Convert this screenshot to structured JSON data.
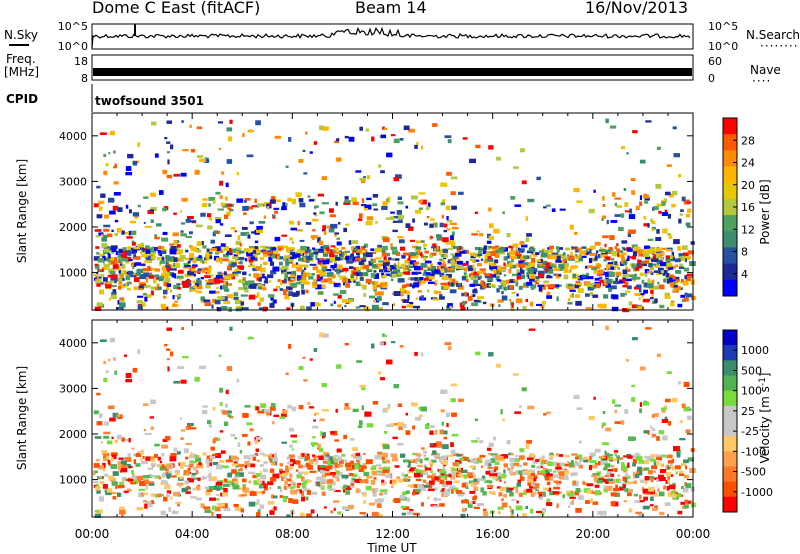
{
  "header": {
    "station": "Dome C East (fitACF)",
    "beam": "Beam 14",
    "date": "16/Nov/2013"
  },
  "panels": {
    "nsky_label": "N.Sky",
    "nsky_ticks": [
      "10^5",
      "10^0"
    ],
    "nsearch_label": "N.Search",
    "nsearch_ticks": [
      "10^5",
      "10^0"
    ],
    "freq_label": "Freq.",
    "freq_unit": "[MHz]",
    "freq_ticks": [
      "18",
      "8"
    ],
    "nave_label": "Nave",
    "nave_ticks": [
      "60",
      "0"
    ],
    "cpid_label": "CPID",
    "cpid_value": "twofsound 3501"
  },
  "colorbars": {
    "power": {
      "label": "Power [dB]",
      "ticks": [
        "28",
        "24",
        "20",
        "16",
        "12",
        "8",
        "4"
      ],
      "colors": [
        "#ff0000",
        "#ff5a00",
        "#ff8c00",
        "#ffb400",
        "#e6c800",
        "#b4c83c",
        "#50a060",
        "#3c8c6e",
        "#2850a0",
        "#1e2896",
        "#0000ff"
      ]
    },
    "velocity": {
      "label": "Velocity [m s^-1]",
      "ticks": [
        "1000",
        "500",
        "100",
        "25",
        "-25",
        "-100",
        "-500",
        "-1000"
      ],
      "colors": [
        "#0000c8",
        "#1e3cb4",
        "#3c8c6e",
        "#50b450",
        "#78dc3c",
        "#c8c8c8",
        "#c8c8c8",
        "#ffc864",
        "#ffa050",
        "#ff7828",
        "#ff5000",
        "#ff0000"
      ]
    }
  },
  "chart_data": [
    {
      "type": "heatmap",
      "name": "power",
      "xlabel": "",
      "ylabel": "Slant Range [km]",
      "x_range": [
        "00:00",
        "24:00"
      ],
      "ylim": [
        180,
        4500
      ],
      "yticks": [
        1000,
        2000,
        3000,
        4000
      ],
      "colorbar": "Power [dB]",
      "colorbar_ticks": [
        28,
        24,
        20,
        16,
        12,
        8,
        4
      ]
    },
    {
      "type": "heatmap",
      "name": "velocity",
      "xlabel": "Time UT",
      "ylabel": "Slant Range [km]",
      "x_ticks": [
        "00:00",
        "04:00",
        "08:00",
        "12:00",
        "16:00",
        "20:00",
        "00:00"
      ],
      "ylim": [
        180,
        4500
      ],
      "yticks": [
        1000,
        2000,
        3000,
        4000
      ],
      "colorbar": "Velocity [m s^-1]",
      "colorbar_ticks": [
        1000,
        500,
        100,
        25,
        -25,
        -100,
        -500,
        -1000
      ]
    }
  ],
  "axes": {
    "ylabel": "Slant Range [km]",
    "xlabel": "Time UT",
    "x_ticks": [
      "00:00",
      "04:00",
      "08:00",
      "12:00",
      "16:00",
      "20:00",
      "00:00"
    ],
    "y_ticks": [
      "1000",
      "2000",
      "3000",
      "4000"
    ]
  }
}
